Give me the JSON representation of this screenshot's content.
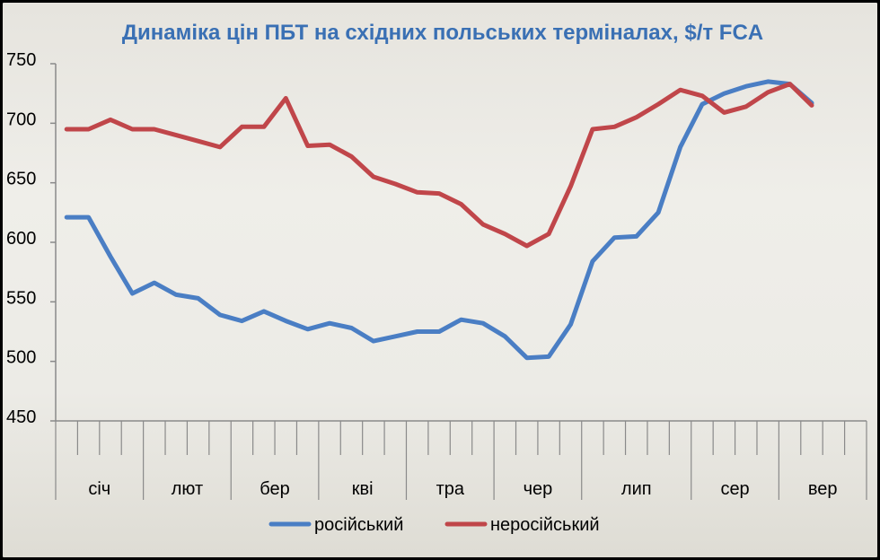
{
  "chart_data": {
    "type": "line",
    "title": "Динаміка цін ПБТ на східних польських терміналах, $/т FCA",
    "xlabel": "",
    "ylabel": "",
    "ylim": [
      450,
      750
    ],
    "yticks": [
      450,
      500,
      550,
      600,
      650,
      700,
      750
    ],
    "ytick_labels": [
      "450",
      "500",
      "550",
      "600",
      "650",
      "700",
      "750"
    ],
    "grid": false,
    "legend_position": "bottom",
    "months": [
      "січ",
      "лют",
      "бер",
      "кві",
      "тра",
      "чер",
      "лип",
      "сер",
      "вер"
    ],
    "month_week_counts": [
      4,
      4,
      4,
      4,
      4,
      4,
      5,
      4,
      4
    ],
    "total_x_slots": 37,
    "series": [
      {
        "name": "російський",
        "color": "#4a7ec4",
        "values": [
          621,
          621,
          588,
          557,
          566,
          556,
          553,
          539,
          534,
          542,
          534,
          527,
          532,
          528,
          517,
          521,
          525,
          525,
          535,
          532,
          521,
          503,
          504,
          531,
          584,
          604,
          605,
          625,
          680,
          716,
          725,
          731,
          735,
          733,
          717
        ]
      },
      {
        "name": "неросійський",
        "color": "#c0464a",
        "values": [
          695,
          695,
          703,
          695,
          695,
          690,
          685,
          680,
          697,
          697,
          721,
          681,
          682,
          672,
          655,
          649,
          642,
          641,
          632,
          615,
          607,
          597,
          607,
          647,
          695,
          697,
          705,
          716,
          728,
          723,
          709,
          714,
          726,
          733,
          715
        ]
      }
    ]
  }
}
